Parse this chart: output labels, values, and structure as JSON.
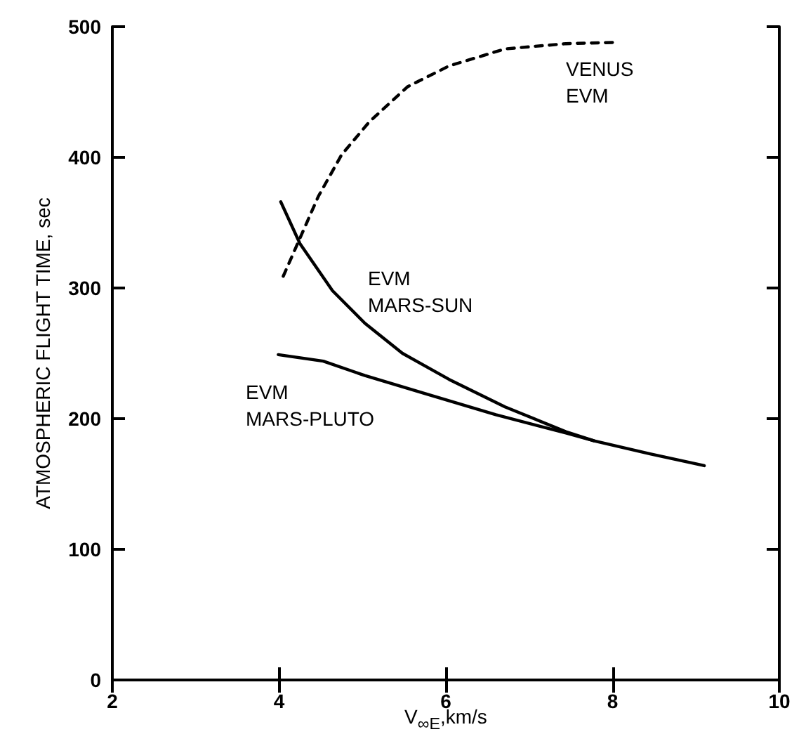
{
  "chart_data": {
    "type": "line",
    "xlabel": "V$_{∞E}$,km/s",
    "ylabel": "ATMOSPHERIC FLIGHT TIME, sec",
    "xlim": [
      2,
      10
    ],
    "xticks": [
      2,
      4,
      6,
      8,
      10
    ],
    "ylim": [
      0,
      500
    ],
    "yticks": [
      0,
      100,
      200,
      300,
      400,
      500
    ],
    "grid": false,
    "marker": "none",
    "series": [
      {
        "name": "VENUS\nEVM",
        "color": "#000000",
        "line_style": "dashed",
        "x": [
          4.05,
          4.47,
          4.75,
          5.08,
          5.54,
          6.04,
          6.71,
          7.44,
          8.06
        ],
        "values": [
          309,
          370,
          402,
          427,
          454,
          470,
          483,
          487,
          488
        ]
      },
      {
        "name": "EVM\nMARS-SUN",
        "color": "#000000",
        "line_style": "solid",
        "x": [
          4.02,
          4.25,
          4.64,
          5.03,
          5.48,
          6.04,
          6.71,
          7.44,
          7.78,
          8.45,
          9.1
        ],
        "values": [
          366,
          334,
          298,
          273,
          250,
          230,
          209,
          190,
          183,
          173,
          164
        ]
      },
      {
        "name": "EVM\nMARS-PLUTO",
        "color": "#000000",
        "line_style": "solid",
        "x": [
          3.99,
          4.53,
          5.03,
          5.76,
          6.6,
          7.44,
          7.78
        ],
        "values": [
          249,
          244,
          233,
          219,
          203,
          189,
          183
        ]
      }
    ]
  }
}
